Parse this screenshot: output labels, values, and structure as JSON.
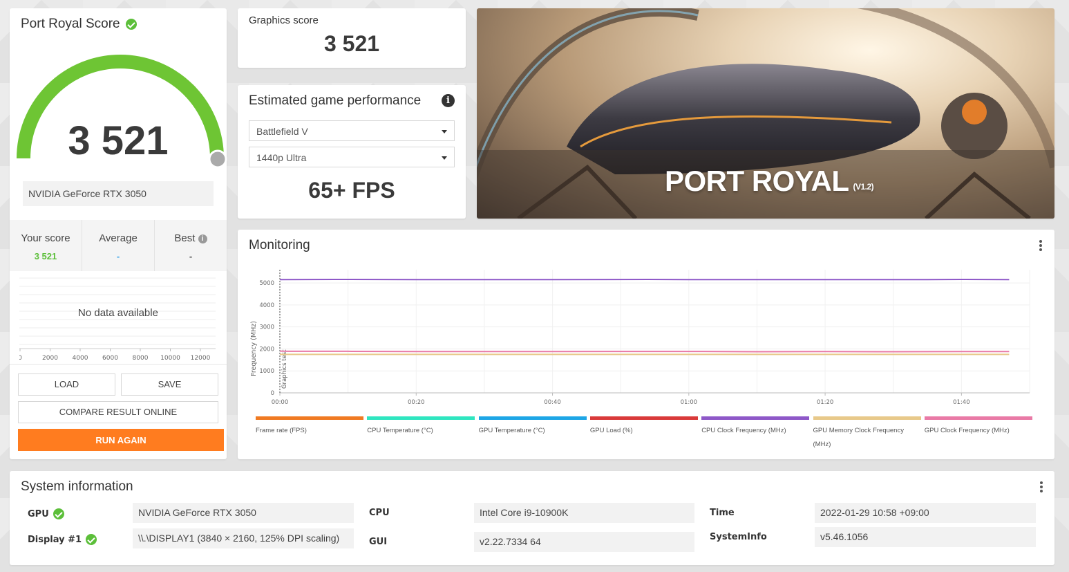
{
  "score_card": {
    "title": "Port Royal Score",
    "score": "3 521",
    "gpu": "NVIDIA GeForce RTX 3050",
    "your_score_label": "Your score",
    "your_score_value": "3 521",
    "average_label": "Average",
    "average_value": "-",
    "best_label": "Best",
    "best_value": "-",
    "no_data": "No data available",
    "histogram_ticks": [
      "0",
      "2000",
      "4000",
      "6000",
      "8000",
      "10000",
      "12000"
    ],
    "load_label": "LOAD",
    "save_label": "SAVE",
    "compare_label": "COMPARE RESULT ONLINE",
    "run_label": "RUN AGAIN"
  },
  "graphics": {
    "label": "Graphics score",
    "value": "3 521"
  },
  "estimated": {
    "title": "Estimated game performance",
    "info_icon": "info-icon",
    "game": "Battlefield V",
    "preset": "1440p Ultra",
    "fps": "65+ FPS"
  },
  "banner": {
    "title": "PORT ROYAL",
    "version": "(V1.2)"
  },
  "monitoring": {
    "title": "Monitoring",
    "ylabel": "Frequency (MHz)",
    "marker_label": "Graphics test",
    "legend": [
      {
        "label": "Frame rate (FPS)",
        "color": "#f07a22"
      },
      {
        "label": "CPU Temperature (°C)",
        "color": "#2fe6c0"
      },
      {
        "label": "GPU Temperature (°C)",
        "color": "#1ea6e6"
      },
      {
        "label": "GPU Load (%)",
        "color": "#d93a3a"
      },
      {
        "label": "CPU Clock Frequency (MHz)",
        "color": "#8e58c8"
      },
      {
        "label": "GPU Memory Clock Frequency",
        "label2": "(MHz)",
        "color": "#e8c98a"
      },
      {
        "label": "GPU Clock Frequency (MHz)",
        "color": "#e97aa6"
      }
    ]
  },
  "chart_data": {
    "type": "line",
    "ylabel": "Frequency (MHz)",
    "x_ticks": [
      "00:00",
      "00:20",
      "00:40",
      "01:00",
      "01:20",
      "01:40"
    ],
    "y_ticks": [
      "0",
      "1000",
      "2000",
      "3000",
      "4000",
      "5000"
    ],
    "ylim": [
      0,
      5600
    ],
    "xlim_seconds": [
      0,
      110
    ],
    "series": [
      {
        "name": "CPU Clock Frequency (MHz)",
        "color": "#8e58c8",
        "x": [
          0,
          8,
          20,
          40,
          54,
          60,
          80,
          95,
          100,
          107
        ],
        "values": [
          5150,
          5160,
          5150,
          5150,
          5160,
          5150,
          5150,
          5150,
          5160,
          5150
        ]
      },
      {
        "name": "GPU Clock Frequency (MHz)",
        "color": "#e97aa6",
        "x": [
          0,
          1,
          10,
          20,
          40,
          60,
          70,
          80,
          90,
          100,
          107
        ],
        "values": [
          1900,
          1890,
          1890,
          1880,
          1880,
          1885,
          1870,
          1880,
          1870,
          1880,
          1880
        ]
      },
      {
        "name": "GPU Memory Clock Frequency (MHz)",
        "color": "#e8c98a",
        "x": [
          0,
          107
        ],
        "values": [
          1750,
          1750
        ]
      }
    ]
  },
  "system": {
    "title": "System information",
    "gpu_key": "GPU",
    "gpu_val": "NVIDIA GeForce RTX 3050",
    "display_key": "Display #1",
    "display_val": "\\\\.\\DISPLAY1 (3840 × 2160, 125% DPI scaling)",
    "cpu_key": "CPU",
    "cpu_val": "Intel Core i9-10900K",
    "gui_key": "GUI",
    "gui_val": "v2.22.7334 64",
    "time_key": "Time",
    "time_val": "2022-01-29 10:58 +09:00",
    "sysinfo_key": "SystemInfo",
    "sysinfo_val": "v5.46.1056"
  }
}
